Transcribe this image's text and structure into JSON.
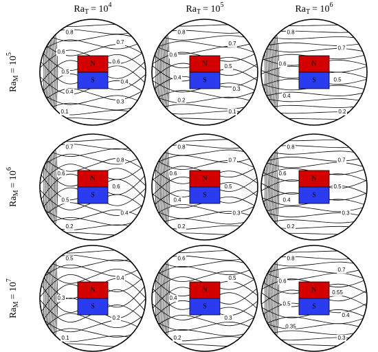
{
  "columns": [
    {
      "symbol": "Ra",
      "subscript": "T",
      "relation": "= 10",
      "exponent": "4"
    },
    {
      "symbol": "Ra",
      "subscript": "T",
      "relation": "= 10",
      "exponent": "5"
    },
    {
      "symbol": "Ra",
      "subscript": "T",
      "relation": "= 10",
      "exponent": "6"
    }
  ],
  "rows": [
    {
      "symbol": "Ra",
      "subscript": "M",
      "relation": "= 10",
      "exponent": "5"
    },
    {
      "symbol": "Ra",
      "subscript": "M",
      "relation": "= 10",
      "exponent": "6"
    },
    {
      "symbol": "Ra",
      "subscript": "M",
      "relation": "= 10",
      "exponent": "7"
    }
  ],
  "panels": [
    {
      "north": "N",
      "south": "S",
      "contour_labels": [
        "0.8",
        "0.7",
        "0.6",
        "0.6",
        "0.5",
        "0.4",
        "0.4",
        "0.3",
        "0.1"
      ]
    },
    {
      "north": "N",
      "south": "S",
      "contour_labels": [
        "0.8",
        "0.7",
        "0.6",
        "0.5",
        "0.4",
        "0.3",
        "0.2",
        "0.1"
      ]
    },
    {
      "north": "N",
      "south": "S",
      "contour_labels": [
        "0.8",
        "0.7",
        "0.6",
        "0.5",
        "0.4",
        "0.2"
      ]
    },
    {
      "north": "N",
      "south": "S",
      "contour_labels": [
        "0.7",
        "0.8",
        "0.6",
        "0.6",
        "0.5",
        "0.4",
        "0.2"
      ]
    },
    {
      "north": "N",
      "south": "S",
      "contour_labels": [
        "0.8",
        "0.7",
        "0.6",
        "0.5",
        "0.4",
        "0.3",
        "0.2"
      ]
    },
    {
      "north": "N",
      "south": "S",
      "contour_labels": [
        "0.8",
        "0.7",
        "0.6",
        "0.5",
        "0.4",
        "0.3",
        "0.2"
      ]
    },
    {
      "north": "N",
      "south": "S",
      "contour_labels": [
        "0.5",
        "0.4",
        "0.3",
        "0.2",
        "0.1"
      ]
    },
    {
      "north": "N",
      "south": "S",
      "contour_labels": [
        "0.6",
        "0.5",
        "0.4",
        "0.3",
        "0.2"
      ]
    },
    {
      "north": "N",
      "south": "S",
      "contour_labels": [
        "0.8",
        "0.7",
        "0.6",
        "0.55",
        "0.5",
        "0.4",
        "0.35",
        "0.3"
      ]
    }
  ]
}
